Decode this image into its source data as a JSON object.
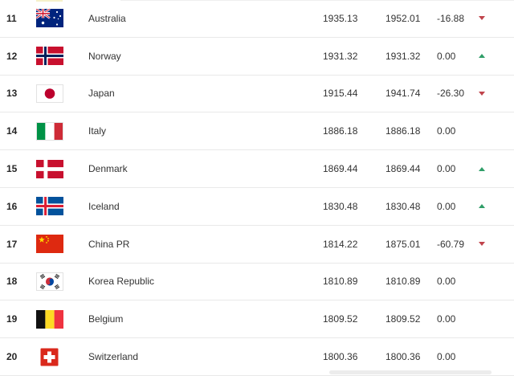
{
  "colors": {
    "background": "#ffffff",
    "row_divider": "#e9e9e9",
    "rank_text": "#262626",
    "primary_text": "#333333",
    "trend_up": "#2f9e68",
    "trend_down": "#c0444c"
  },
  "ranking_table": {
    "rows": [
      {
        "rank": "11",
        "flag": "australia",
        "name": "Australia",
        "points": "1935.13",
        "prev_points": "1952.01",
        "change": "-16.88",
        "trend": "down"
      },
      {
        "rank": "12",
        "flag": "norway",
        "name": "Norway",
        "points": "1931.32",
        "prev_points": "1931.32",
        "change": "0.00",
        "trend": "up"
      },
      {
        "rank": "13",
        "flag": "japan",
        "name": "Japan",
        "points": "1915.44",
        "prev_points": "1941.74",
        "change": "-26.30",
        "trend": "down"
      },
      {
        "rank": "14",
        "flag": "italy",
        "name": "Italy",
        "points": "1886.18",
        "prev_points": "1886.18",
        "change": "0.00",
        "trend": "none"
      },
      {
        "rank": "15",
        "flag": "denmark",
        "name": "Denmark",
        "points": "1869.44",
        "prev_points": "1869.44",
        "change": "0.00",
        "trend": "up"
      },
      {
        "rank": "16",
        "flag": "iceland",
        "name": "Iceland",
        "points": "1830.48",
        "prev_points": "1830.48",
        "change": "0.00",
        "trend": "up"
      },
      {
        "rank": "17",
        "flag": "china-pr",
        "name": "China PR",
        "points": "1814.22",
        "prev_points": "1875.01",
        "change": "-60.79",
        "trend": "down"
      },
      {
        "rank": "18",
        "flag": "korea-republic",
        "name": "Korea Republic",
        "points": "1810.89",
        "prev_points": "1810.89",
        "change": "0.00",
        "trend": "none"
      },
      {
        "rank": "19",
        "flag": "belgium",
        "name": "Belgium",
        "points": "1809.52",
        "prev_points": "1809.52",
        "change": "0.00",
        "trend": "none"
      },
      {
        "rank": "20",
        "flag": "switzerland",
        "name": "Switzerland",
        "points": "1800.36",
        "prev_points": "1800.36",
        "change": "0.00",
        "trend": "none"
      }
    ]
  }
}
